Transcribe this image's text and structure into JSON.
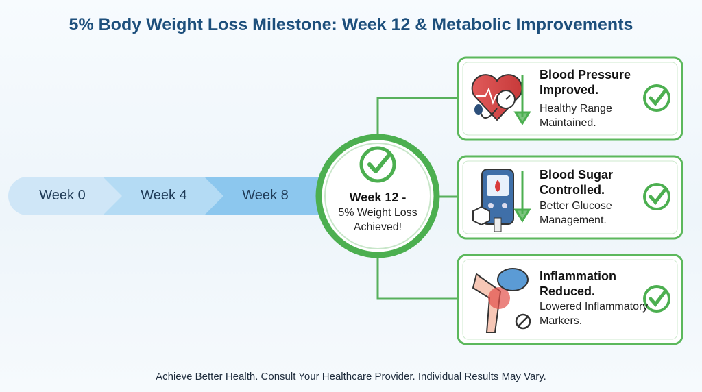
{
  "header": {
    "title": "5% Body Weight Loss Milestone: Week 12 & Metabolic Improvements"
  },
  "timeline": {
    "steps": [
      "Week 0",
      "Week 4",
      "Week 8"
    ]
  },
  "milestone": {
    "title": "Week 12 -",
    "text": "5% Weight Loss Achieved!"
  },
  "cards": [
    {
      "title": "Blood Pressure Improved.",
      "text": "Healthy Range Maintained."
    },
    {
      "title": "Blood Sugar Controlled.",
      "text": "Better Glucose Management."
    },
    {
      "title": "Inflammation Reduced.",
      "text": "Lowered Inflammatory Markers."
    }
  ],
  "footer": {
    "text": "Achieve Better Health. Consult Your Healthcare Provider. Individual Results May Vary."
  }
}
